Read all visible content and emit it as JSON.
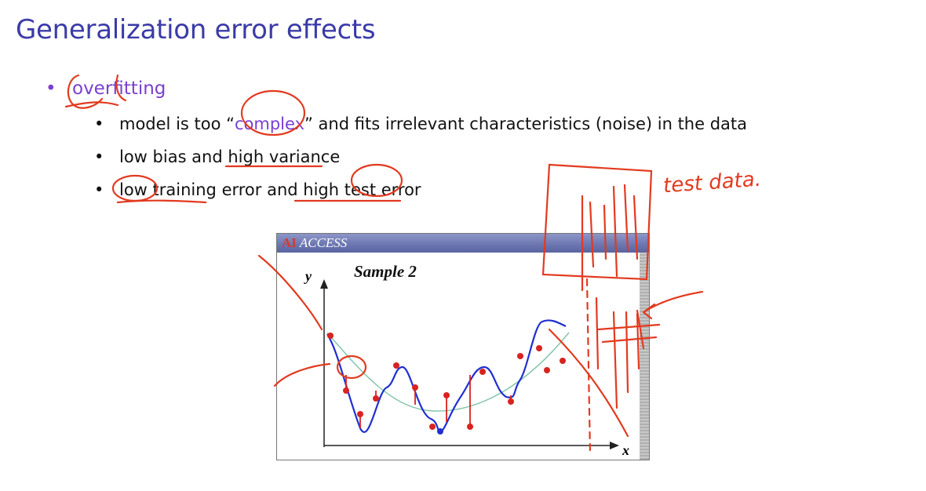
{
  "slide": {
    "title": "Generalization error effects",
    "bullet": "overfitting",
    "sub_bullets": [
      {
        "before": "model is too “",
        "highlight": "complex",
        "after": "” and fits irrelevant characteristics (noise) in the data"
      },
      {
        "text": "low bias and high variance"
      },
      {
        "text": "low training error and high test error"
      }
    ],
    "bullet_symbol": "•"
  },
  "figure": {
    "brand_ai": "AI",
    "brand_rest": " ACCESS",
    "title": "Sample 2",
    "ylabel": "y",
    "xlabel": "x"
  },
  "annotation": {
    "note": "test data."
  },
  "colors": {
    "title": "#3b3ba8",
    "bullet": "#7a3fd0",
    "ink": "#e23a1f",
    "fit_curve": "#1f2fd0",
    "true_curve": "#7fc4a8",
    "points": "#d8231f"
  }
}
